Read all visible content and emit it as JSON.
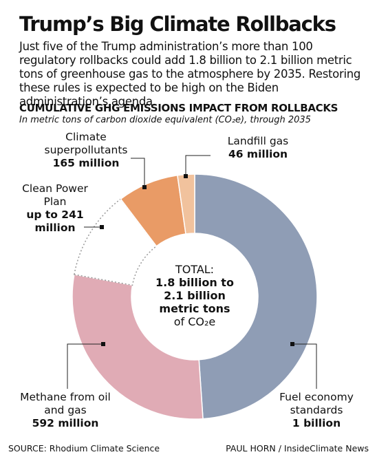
{
  "header": {
    "title": "Trump’s Big Climate Rollbacks",
    "intro": "Just five of the Trump administration’s more than 100 regulatory rollbacks could add 1.8 billion to 2.1 billion metric tons of greenhouse gas to the atmosphere by 2035. Restoring these rules is expected to be high on the Biden administration’s agenda."
  },
  "chart_data": {
    "type": "donut",
    "title": "CUMULATIVE GHG EMISSIONS IMPACT FROM ROLLBACKS",
    "subtitle": "In metric tons of carbon dioxide equivalent (CO₂e), through 2035",
    "categories": [
      "Fuel economy standards",
      "Methane from oil and gas",
      "Clean Power Plan",
      "Climate superpollutants",
      "Landfill gas"
    ],
    "values": [
      1000,
      592,
      241,
      165,
      46
    ],
    "value_labels": [
      "1 billion",
      "592 million",
      "up to 241 million",
      "165 million",
      "46 million"
    ],
    "colors": [
      "#8f9db5",
      "#e0abb5",
      "#ffffff",
      "#e99b66",
      "#f1c29d"
    ],
    "center_total_label": "TOTAL:",
    "center_total_value": "1.8 billion to 2.1 billion metric tons",
    "center_unit": "of CO₂e"
  },
  "footer": {
    "source": "SOURCE: Rhodium Climate Science",
    "credit": "PAUL HORN / InsideClimate News"
  }
}
